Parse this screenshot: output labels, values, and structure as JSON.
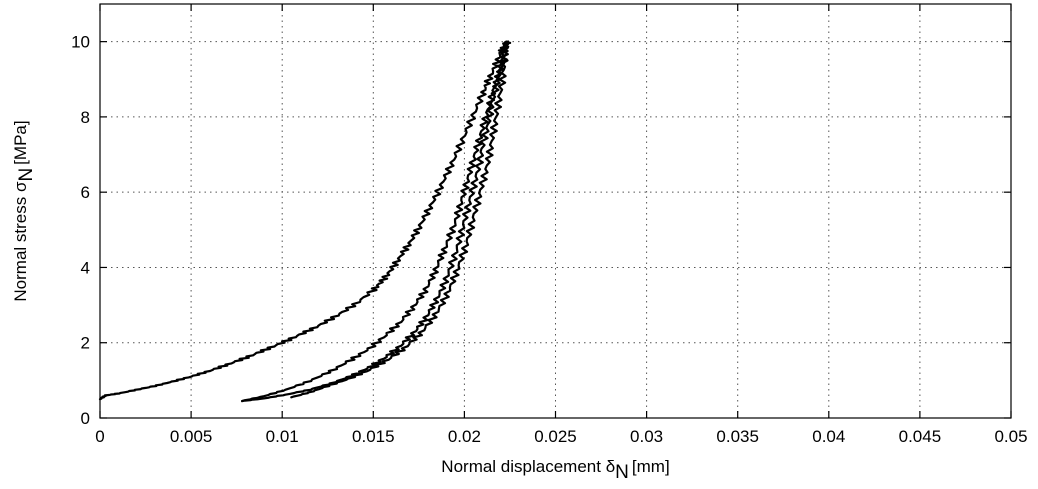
{
  "chart_data": {
    "type": "line",
    "xlabel": "Normal displacement δ",
    "xlabel_sub": "N",
    "xlabel_unit": "[mm]",
    "ylabel": "Normal stress σ",
    "ylabel_sub": "N",
    "ylabel_unit": "[MPa]",
    "xlim": [
      0,
      0.05
    ],
    "ylim": [
      0,
      11
    ],
    "xticks": [
      0,
      0.005,
      0.01,
      0.015,
      0.02,
      0.025,
      0.03,
      0.035,
      0.04,
      0.045,
      0.05
    ],
    "xtick_labels": [
      "0",
      "0.005",
      "0.01",
      "0.015",
      "0.02",
      "0.025",
      "0.03",
      "0.035",
      "0.04",
      "0.045",
      "0.05"
    ],
    "yticks": [
      0,
      2,
      4,
      6,
      8,
      10
    ],
    "ytick_labels": [
      "0",
      "2",
      "4",
      "6",
      "8",
      "10"
    ],
    "grid": true,
    "line_color": "#000000",
    "series": [
      {
        "x": [
          0,
          0.0003,
          0.001,
          0.002,
          0.003,
          0.004,
          0.005,
          0.006,
          0.007,
          0.008,
          0.009,
          0.01,
          0.011,
          0.012,
          0.013,
          0.014,
          0.015,
          0.0155,
          0.016,
          0.0165,
          0.017,
          0.0175,
          0.018,
          0.0185,
          0.019,
          0.0195,
          0.02,
          0.0205,
          0.021,
          0.0213,
          0.0217,
          0.022,
          0.0222,
          0.0224
        ],
        "y": [
          0.5,
          0.6,
          0.65,
          0.75,
          0.85,
          0.97,
          1.1,
          1.25,
          1.42,
          1.6,
          1.8,
          2.0,
          2.22,
          2.45,
          2.72,
          3.02,
          3.4,
          3.65,
          3.95,
          4.3,
          4.65,
          5.05,
          5.5,
          5.95,
          6.45,
          6.95,
          7.5,
          8.05,
          8.6,
          8.95,
          9.35,
          9.7,
          9.9,
          10.0
        ]
      },
      {
        "x": [
          0.0224,
          0.0222,
          0.0219,
          0.0216,
          0.0213,
          0.021,
          0.0207,
          0.0204,
          0.0201,
          0.0198,
          0.0195,
          0.0191,
          0.0187,
          0.0183,
          0.0178,
          0.0172,
          0.0165,
          0.0157,
          0.0148,
          0.0138,
          0.0127,
          0.0115,
          0.0102,
          0.009,
          0.0078
        ],
        "y": [
          10.0,
          9.6,
          9.15,
          8.7,
          8.2,
          7.7,
          7.2,
          6.7,
          6.2,
          5.7,
          5.2,
          4.7,
          4.25,
          3.8,
          3.35,
          2.95,
          2.55,
          2.2,
          1.85,
          1.55,
          1.25,
          0.98,
          0.75,
          0.58,
          0.45
        ]
      },
      {
        "x": [
          0.0078,
          0.009,
          0.0102,
          0.0115,
          0.0127,
          0.0138,
          0.0148,
          0.0157,
          0.0165,
          0.0172,
          0.0178,
          0.0183,
          0.0188,
          0.0192,
          0.0196,
          0.0199,
          0.0202,
          0.0205,
          0.0208,
          0.021,
          0.0213,
          0.0215,
          0.0218,
          0.022,
          0.0222,
          0.0223
        ],
        "y": [
          0.45,
          0.52,
          0.62,
          0.75,
          0.92,
          1.12,
          1.35,
          1.62,
          1.92,
          2.25,
          2.6,
          3.0,
          3.45,
          3.95,
          4.5,
          5.05,
          5.6,
          6.15,
          6.7,
          7.25,
          7.8,
          8.35,
          8.9,
          9.35,
          9.75,
          10.0
        ]
      },
      {
        "x": [
          0.0223,
          0.0222,
          0.0221,
          0.0219,
          0.0217,
          0.0215,
          0.0213,
          0.021,
          0.0207,
          0.0204,
          0.0201,
          0.0197,
          0.0193,
          0.0188,
          0.0182,
          0.0175,
          0.0167,
          0.0158,
          0.0148,
          0.0137,
          0.0125,
          0.0115,
          0.0105
        ],
        "y": [
          10.0,
          9.5,
          9.0,
          8.45,
          7.9,
          7.35,
          6.8,
          6.25,
          5.7,
          5.15,
          4.6,
          4.05,
          3.55,
          3.05,
          2.6,
          2.2,
          1.85,
          1.55,
          1.28,
          1.05,
          0.85,
          0.68,
          0.55
        ]
      }
    ]
  }
}
